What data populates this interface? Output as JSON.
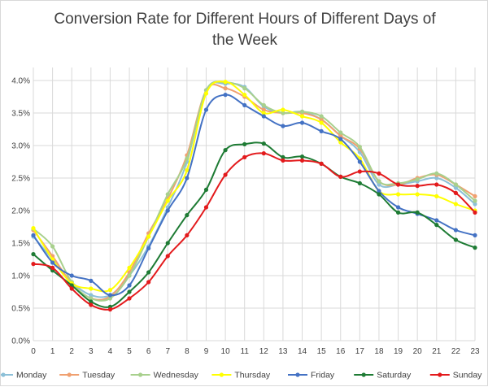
{
  "chart_data": {
    "type": "line",
    "title": "Conversion Rate for Different Hours of Different Days of the Week",
    "title_lines": [
      "Conversion Rate for Different Hours of Different Days of",
      "the Week"
    ],
    "xlabel": "",
    "ylabel": "",
    "x": [
      0,
      1,
      2,
      3,
      4,
      5,
      6,
      7,
      8,
      9,
      10,
      11,
      12,
      13,
      14,
      15,
      16,
      17,
      18,
      19,
      20,
      21,
      22,
      23
    ],
    "ylim": [
      0,
      4.2
    ],
    "yticks": [
      0,
      0.5,
      1.0,
      1.5,
      2.0,
      2.5,
      3.0,
      3.5,
      4.0
    ],
    "ytick_labels": [
      "0.0%",
      "0.5%",
      "1.0%",
      "1.5%",
      "2.0%",
      "2.5%",
      "3.0%",
      "3.5%",
      "4.0%"
    ],
    "grid": true,
    "legend_position": "bottom",
    "series": [
      {
        "name": "Monday",
        "color": "#8cc0d8",
        "values": [
          1.6,
          1.25,
          0.9,
          0.7,
          0.7,
          1.0,
          1.45,
          2.05,
          2.75,
          3.85,
          3.95,
          3.9,
          3.6,
          3.5,
          3.52,
          3.4,
          3.15,
          2.9,
          2.4,
          2.4,
          2.45,
          2.5,
          2.35,
          2.1
        ]
      },
      {
        "name": "Tuesday",
        "color": "#f0a070",
        "values": [
          1.7,
          1.3,
          0.88,
          0.65,
          0.68,
          1.05,
          1.65,
          2.18,
          2.85,
          3.85,
          3.88,
          3.75,
          3.55,
          3.5,
          3.5,
          3.4,
          3.15,
          2.95,
          2.45,
          2.4,
          2.5,
          2.55,
          2.4,
          2.22
        ]
      },
      {
        "name": "Wednesday",
        "color": "#a8d08d",
        "values": [
          1.72,
          1.45,
          0.9,
          0.65,
          0.65,
          1.0,
          1.6,
          2.25,
          2.8,
          3.85,
          3.97,
          3.88,
          3.62,
          3.5,
          3.52,
          3.45,
          3.2,
          2.98,
          2.45,
          2.42,
          2.48,
          2.57,
          2.4,
          2.15
        ]
      },
      {
        "name": "Thursday",
        "color": "#ffff00",
        "values": [
          1.73,
          1.25,
          0.88,
          0.8,
          0.78,
          1.12,
          1.6,
          2.15,
          2.62,
          3.8,
          3.98,
          3.78,
          3.5,
          3.55,
          3.45,
          3.35,
          3.05,
          2.8,
          2.3,
          2.25,
          2.25,
          2.22,
          2.1,
          2.0
        ]
      },
      {
        "name": "Friday",
        "color": "#4472c4",
        "values": [
          1.62,
          1.2,
          1.0,
          0.92,
          0.7,
          0.85,
          1.42,
          2.0,
          2.5,
          3.55,
          3.78,
          3.62,
          3.45,
          3.3,
          3.35,
          3.22,
          3.1,
          2.75,
          2.3,
          2.05,
          1.95,
          1.85,
          1.7,
          1.62
        ]
      },
      {
        "name": "Saturday",
        "color": "#1e7b34",
        "values": [
          1.33,
          1.08,
          0.85,
          0.6,
          0.52,
          0.75,
          1.05,
          1.5,
          1.93,
          2.32,
          2.93,
          3.02,
          3.03,
          2.82,
          2.83,
          2.72,
          2.52,
          2.42,
          2.25,
          1.97,
          1.97,
          1.78,
          1.55,
          1.43
        ]
      },
      {
        "name": "Sunday",
        "color": "#e31a1c",
        "values": [
          1.18,
          1.12,
          0.8,
          0.55,
          0.48,
          0.65,
          0.9,
          1.3,
          1.62,
          2.05,
          2.55,
          2.82,
          2.88,
          2.77,
          2.77,
          2.72,
          2.52,
          2.6,
          2.57,
          2.4,
          2.38,
          2.4,
          2.27,
          1.97
        ]
      }
    ]
  }
}
